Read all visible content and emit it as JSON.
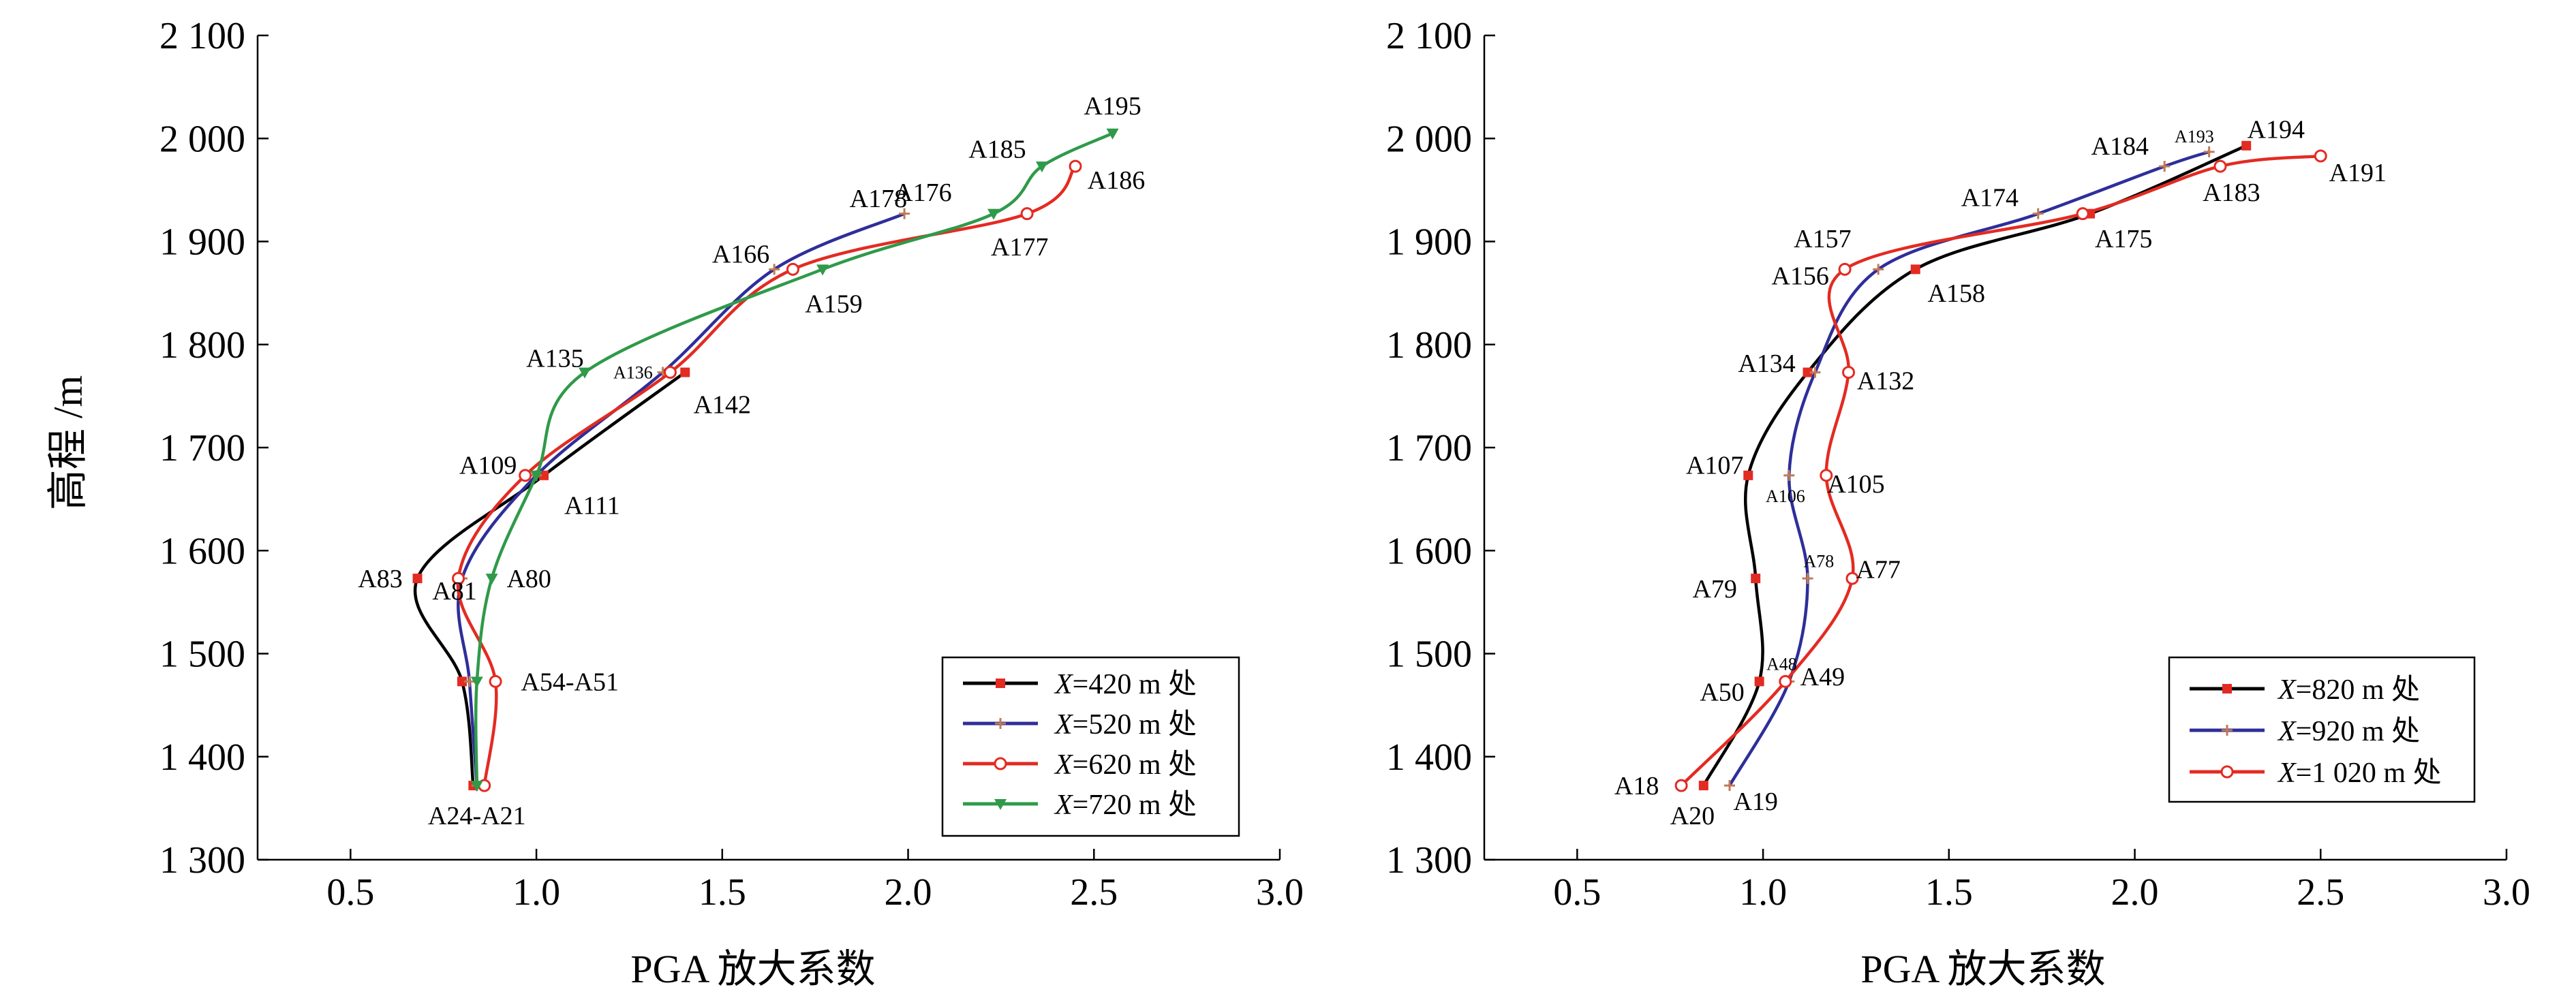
{
  "colors": {
    "s420": "#000000",
    "s520": "#2e2e9a",
    "s620": "#e32b22",
    "s720": "#2f9a49",
    "square": "#e32b22",
    "plus": "#c07a55",
    "tri": "#2f9a49"
  },
  "chart_data": [
    {
      "type": "line",
      "title": "",
      "xlabel": "PGA 放大系数",
      "ylabel": "高程 /m",
      "xlim": [
        0.25,
        3.0
      ],
      "ylim": [
        1300,
        2100
      ],
      "xticks": [
        0.5,
        1.0,
        1.5,
        2.0,
        2.5,
        3.0
      ],
      "xtick_labels": [
        "0.5",
        "1.0",
        "1.5",
        "2.0",
        "2.5",
        "3.0"
      ],
      "yticks": [
        1300,
        1400,
        1500,
        1600,
        1700,
        1800,
        1900,
        2000,
        2100
      ],
      "ytick_labels": [
        "1 300",
        "1 400",
        "1 500",
        "1 600",
        "1 700",
        "1 800",
        "1 900",
        "2 000",
        "2 100"
      ],
      "legend_position": "bottom-right",
      "series": [
        {
          "name": "X=420 m 处",
          "legend_var": "X",
          "legend_rest": "=420 m 处",
          "color": "#000000",
          "marker": "square",
          "marker_color": "#e32b22",
          "x": [
            0.83,
            0.8,
            0.68,
            1.02,
            1.4
          ],
          "y": [
            1372,
            1473,
            1573,
            1673,
            1773
          ]
        },
        {
          "name": "X=520 m 处",
          "legend_var": "X",
          "legend_rest": "=520 m 处",
          "color": "#2e2e9a",
          "marker": "plus",
          "marker_color": "#c07a55",
          "x": [
            0.84,
            0.82,
            0.8,
            1.0,
            1.34,
            1.64,
            1.99
          ],
          "y": [
            1372,
            1473,
            1573,
            1673,
            1773,
            1873,
            1927
          ]
        },
        {
          "name": "X=620 m 处",
          "legend_var": "X",
          "legend_rest": "=620 m 处",
          "color": "#e32b22",
          "marker": "circle",
          "marker_color": "#e32b22",
          "x": [
            0.86,
            0.89,
            0.79,
            0.97,
            1.36,
            1.69,
            2.32,
            2.45
          ],
          "y": [
            1372,
            1473,
            1573,
            1673,
            1773,
            1873,
            1927,
            1973
          ]
        },
        {
          "name": "X=720 m 处",
          "legend_var": "X",
          "legend_rest": "=720 m 处",
          "color": "#2f9a49",
          "marker": "triangle",
          "marker_color": "#2f9a49",
          "x": [
            0.84,
            0.84,
            0.88,
            1.0,
            1.13,
            1.77,
            2.23,
            2.36,
            2.55
          ],
          "y": [
            1372,
            1473,
            1573,
            1673,
            1773,
            1873,
            1927,
            1973,
            2005
          ]
        }
      ],
      "annotations": [
        {
          "text": "A195",
          "x": 2.55,
          "y": 2032,
          "size": "normal"
        },
        {
          "text": "A185",
          "x": 2.24,
          "y": 1990,
          "size": "normal"
        },
        {
          "text": "A186",
          "x": 2.56,
          "y": 1960,
          "size": "normal"
        },
        {
          "text": "A176",
          "x": 2.04,
          "y": 1948,
          "size": "normal"
        },
        {
          "text": "A178",
          "x": 1.92,
          "y": 1942,
          "size": "normal"
        },
        {
          "text": "A177",
          "x": 2.3,
          "y": 1895,
          "size": "normal"
        },
        {
          "text": "A166",
          "x": 1.55,
          "y": 1888,
          "size": "normal"
        },
        {
          "text": "A159",
          "x": 1.8,
          "y": 1840,
          "size": "normal"
        },
        {
          "text": "A135",
          "x": 1.05,
          "y": 1787,
          "size": "normal"
        },
        {
          "text": "A136",
          "x": 1.26,
          "y": 1773,
          "size": "small"
        },
        {
          "text": "A142",
          "x": 1.5,
          "y": 1742,
          "size": "normal"
        },
        {
          "text": "A109",
          "x": 0.87,
          "y": 1683,
          "size": "normal"
        },
        {
          "text": "A111",
          "x": 1.15,
          "y": 1644,
          "size": "normal"
        },
        {
          "text": "A83",
          "x": 0.58,
          "y": 1573,
          "size": "normal"
        },
        {
          "text": "A81",
          "x": 0.78,
          "y": 1561,
          "size": "normal"
        },
        {
          "text": "A80",
          "x": 0.98,
          "y": 1573,
          "size": "normal"
        },
        {
          "text": "A54-A51",
          "x": 1.09,
          "y": 1473,
          "size": "normal"
        },
        {
          "text": "A24-A21",
          "x": 0.84,
          "y": 1343,
          "size": "normal"
        }
      ]
    },
    {
      "type": "line",
      "title": "",
      "xlabel": "PGA 放大系数",
      "ylabel": "",
      "xlim": [
        0.25,
        3.0
      ],
      "ylim": [
        1300,
        2100
      ],
      "xticks": [
        0.5,
        1.0,
        1.5,
        2.0,
        2.5,
        3.0
      ],
      "xtick_labels": [
        "0.5",
        "1.0",
        "1.5",
        "2.0",
        "2.5",
        "3.0"
      ],
      "yticks": [
        1300,
        1400,
        1500,
        1600,
        1700,
        1800,
        1900,
        2000,
        2100
      ],
      "ytick_labels": [
        "1 300",
        "1 400",
        "1 500",
        "1 600",
        "1 700",
        "1 800",
        "1 900",
        "2 000",
        "2 100"
      ],
      "legend_position": "bottom-right",
      "series": [
        {
          "name": "X=820 m 处",
          "legend_var": "X",
          "legend_rest": "=820 m 处",
          "color": "#000000",
          "marker": "square",
          "marker_color": "#e32b22",
          "x": [
            0.84,
            0.99,
            0.98,
            0.96,
            1.12,
            1.41,
            1.88,
            2.3
          ],
          "y": [
            1372,
            1473,
            1573,
            1673,
            1773,
            1873,
            1927,
            1993
          ]
        },
        {
          "name": "X=920 m 处",
          "legend_var": "X",
          "legend_rest": "=920 m 处",
          "color": "#2e2e9a",
          "marker": "plus",
          "marker_color": "#c07a55",
          "x": [
            0.91,
            1.07,
            1.12,
            1.07,
            1.14,
            1.31,
            1.74,
            2.08,
            2.2
          ],
          "y": [
            1372,
            1473,
            1573,
            1673,
            1773,
            1873,
            1927,
            1973,
            1987
          ]
        },
        {
          "name": "X=1 020 m 处",
          "legend_var": "X",
          "legend_rest": "=1 020 m 处",
          "color": "#e32b22",
          "marker": "circle",
          "marker_color": "#e32b22",
          "x": [
            0.78,
            1.06,
            1.24,
            1.17,
            1.23,
            1.22,
            1.86,
            2.23,
            2.5
          ],
          "y": [
            1372,
            1473,
            1573,
            1673,
            1773,
            1873,
            1927,
            1973,
            1983
          ]
        }
      ],
      "annotations": [
        {
          "text": "A194",
          "x": 2.38,
          "y": 2009,
          "size": "normal"
        },
        {
          "text": "A193",
          "x": 2.16,
          "y": 2002,
          "size": "small"
        },
        {
          "text": "A184",
          "x": 1.96,
          "y": 1993,
          "size": "normal"
        },
        {
          "text": "A191",
          "x": 2.6,
          "y": 1967,
          "size": "normal"
        },
        {
          "text": "A183",
          "x": 2.26,
          "y": 1948,
          "size": "normal"
        },
        {
          "text": "A174",
          "x": 1.61,
          "y": 1943,
          "size": "normal"
        },
        {
          "text": "A175",
          "x": 1.97,
          "y": 1903,
          "size": "normal"
        },
        {
          "text": "A157",
          "x": 1.16,
          "y": 1903,
          "size": "normal"
        },
        {
          "text": "A156",
          "x": 1.1,
          "y": 1867,
          "size": "normal"
        },
        {
          "text": "A158",
          "x": 1.52,
          "y": 1850,
          "size": "normal"
        },
        {
          "text": "A134",
          "x": 1.01,
          "y": 1782,
          "size": "normal"
        },
        {
          "text": "A132",
          "x": 1.33,
          "y": 1765,
          "size": "normal"
        },
        {
          "text": "A107",
          "x": 0.87,
          "y": 1683,
          "size": "normal"
        },
        {
          "text": "A106",
          "x": 1.06,
          "y": 1653,
          "size": "small"
        },
        {
          "text": "A105",
          "x": 1.25,
          "y": 1665,
          "size": "normal"
        },
        {
          "text": "A78",
          "x": 1.15,
          "y": 1590,
          "size": "small"
        },
        {
          "text": "A77",
          "x": 1.31,
          "y": 1582,
          "size": "normal"
        },
        {
          "text": "A79",
          "x": 0.87,
          "y": 1563,
          "size": "normal"
        },
        {
          "text": "A48",
          "x": 1.05,
          "y": 1490,
          "size": "small"
        },
        {
          "text": "A49",
          "x": 1.16,
          "y": 1478,
          "size": "normal"
        },
        {
          "text": "A50",
          "x": 0.89,
          "y": 1463,
          "size": "normal"
        },
        {
          "text": "A18",
          "x": 0.66,
          "y": 1372,
          "size": "normal"
        },
        {
          "text": "A20",
          "x": 0.81,
          "y": 1343,
          "size": "normal"
        },
        {
          "text": "A19",
          "x": 0.98,
          "y": 1357,
          "size": "normal"
        }
      ]
    }
  ]
}
